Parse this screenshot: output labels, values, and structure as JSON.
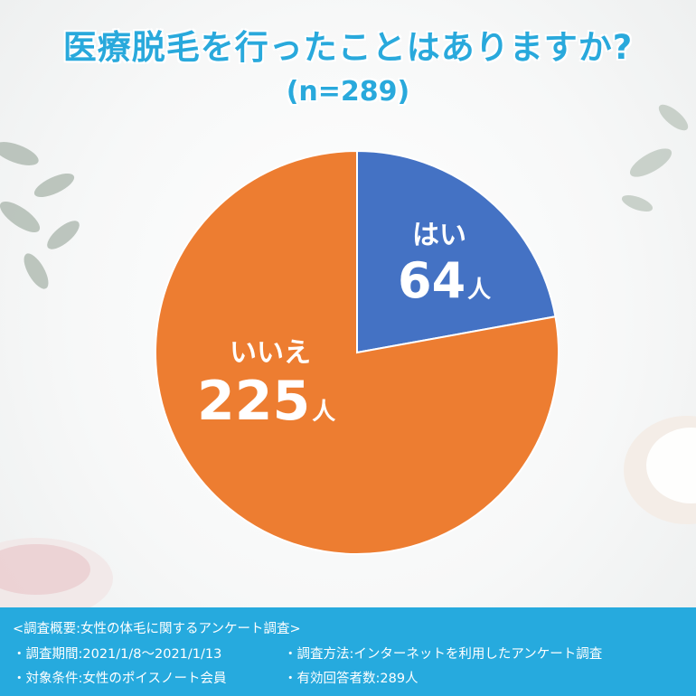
{
  "header": {
    "title": "医療脱毛を行ったことはありますか?",
    "subtitle": "(n=289)"
  },
  "chart_data": {
    "type": "pie",
    "title": "医療脱毛を行ったことはありますか?",
    "n": 289,
    "unit": "人",
    "slices": [
      {
        "label": "はい",
        "value": 64,
        "color": "#4472c4"
      },
      {
        "label": "いいえ",
        "value": 225,
        "color": "#ed7d31"
      }
    ]
  },
  "labels": {
    "yes_name": "はい",
    "yes_value": "64",
    "no_name": "いいえ",
    "no_value": "225",
    "unit": "人"
  },
  "footer": {
    "summary": "<調査概要:女性の体毛に関するアンケート調査>",
    "period": "・調査期間:2021/1/8〜2021/1/13",
    "method": "・調査方法:インターネットを利用したアンケート調査",
    "target": "・対象条件:女性のポイスノート会員",
    "respondents": "・有効回答者数:289人"
  }
}
